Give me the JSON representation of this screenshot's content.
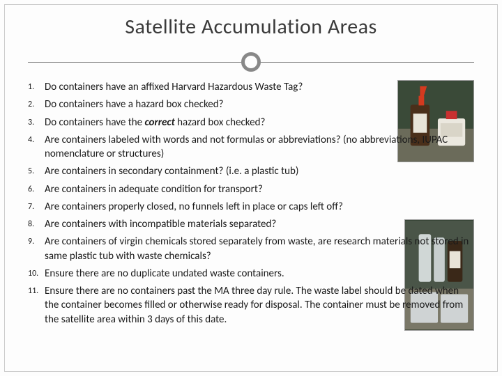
{
  "title": "Satellite Accumulation Areas",
  "items": [
    "Do containers have an affixed  Harvard Hazardous Waste Tag?",
    "Do containers have a hazard box checked?",
    "Do containers have the <span class=\"emph\">correct</span> hazard box checked?",
    "Are containers labeled with words and not formulas or abbreviations? (no abbreviations, IUPAC nomenclature or structures)",
    "Are containers in secondary containment? (i.e. a plastic tub)",
    "Are containers in adequate condition for transport?",
    "Are containers properly closed, no funnels left in place or  caps left off?",
    "Are containers with incompatible materials separated?",
    "Are containers of virgin chemicals stored separately from waste, are research materials not stored in same plastic tub with waste chemicals?",
    "Ensure there are no duplicate undated waste containers.",
    "Ensure there are no containers past the MA three day rule. The waste label should be dated when the container becomes filled or otherwise ready for disposal.  The container must be removed from the satellite area within 3 days of this date."
  ],
  "colors": {
    "title": "#3a3a3a",
    "text": "#1a1a1a",
    "divider": "#888888",
    "background": "#fdfdfd"
  },
  "typography": {
    "title_fontsize": 30,
    "body_fontsize": 15,
    "number_fontsize": 12
  }
}
